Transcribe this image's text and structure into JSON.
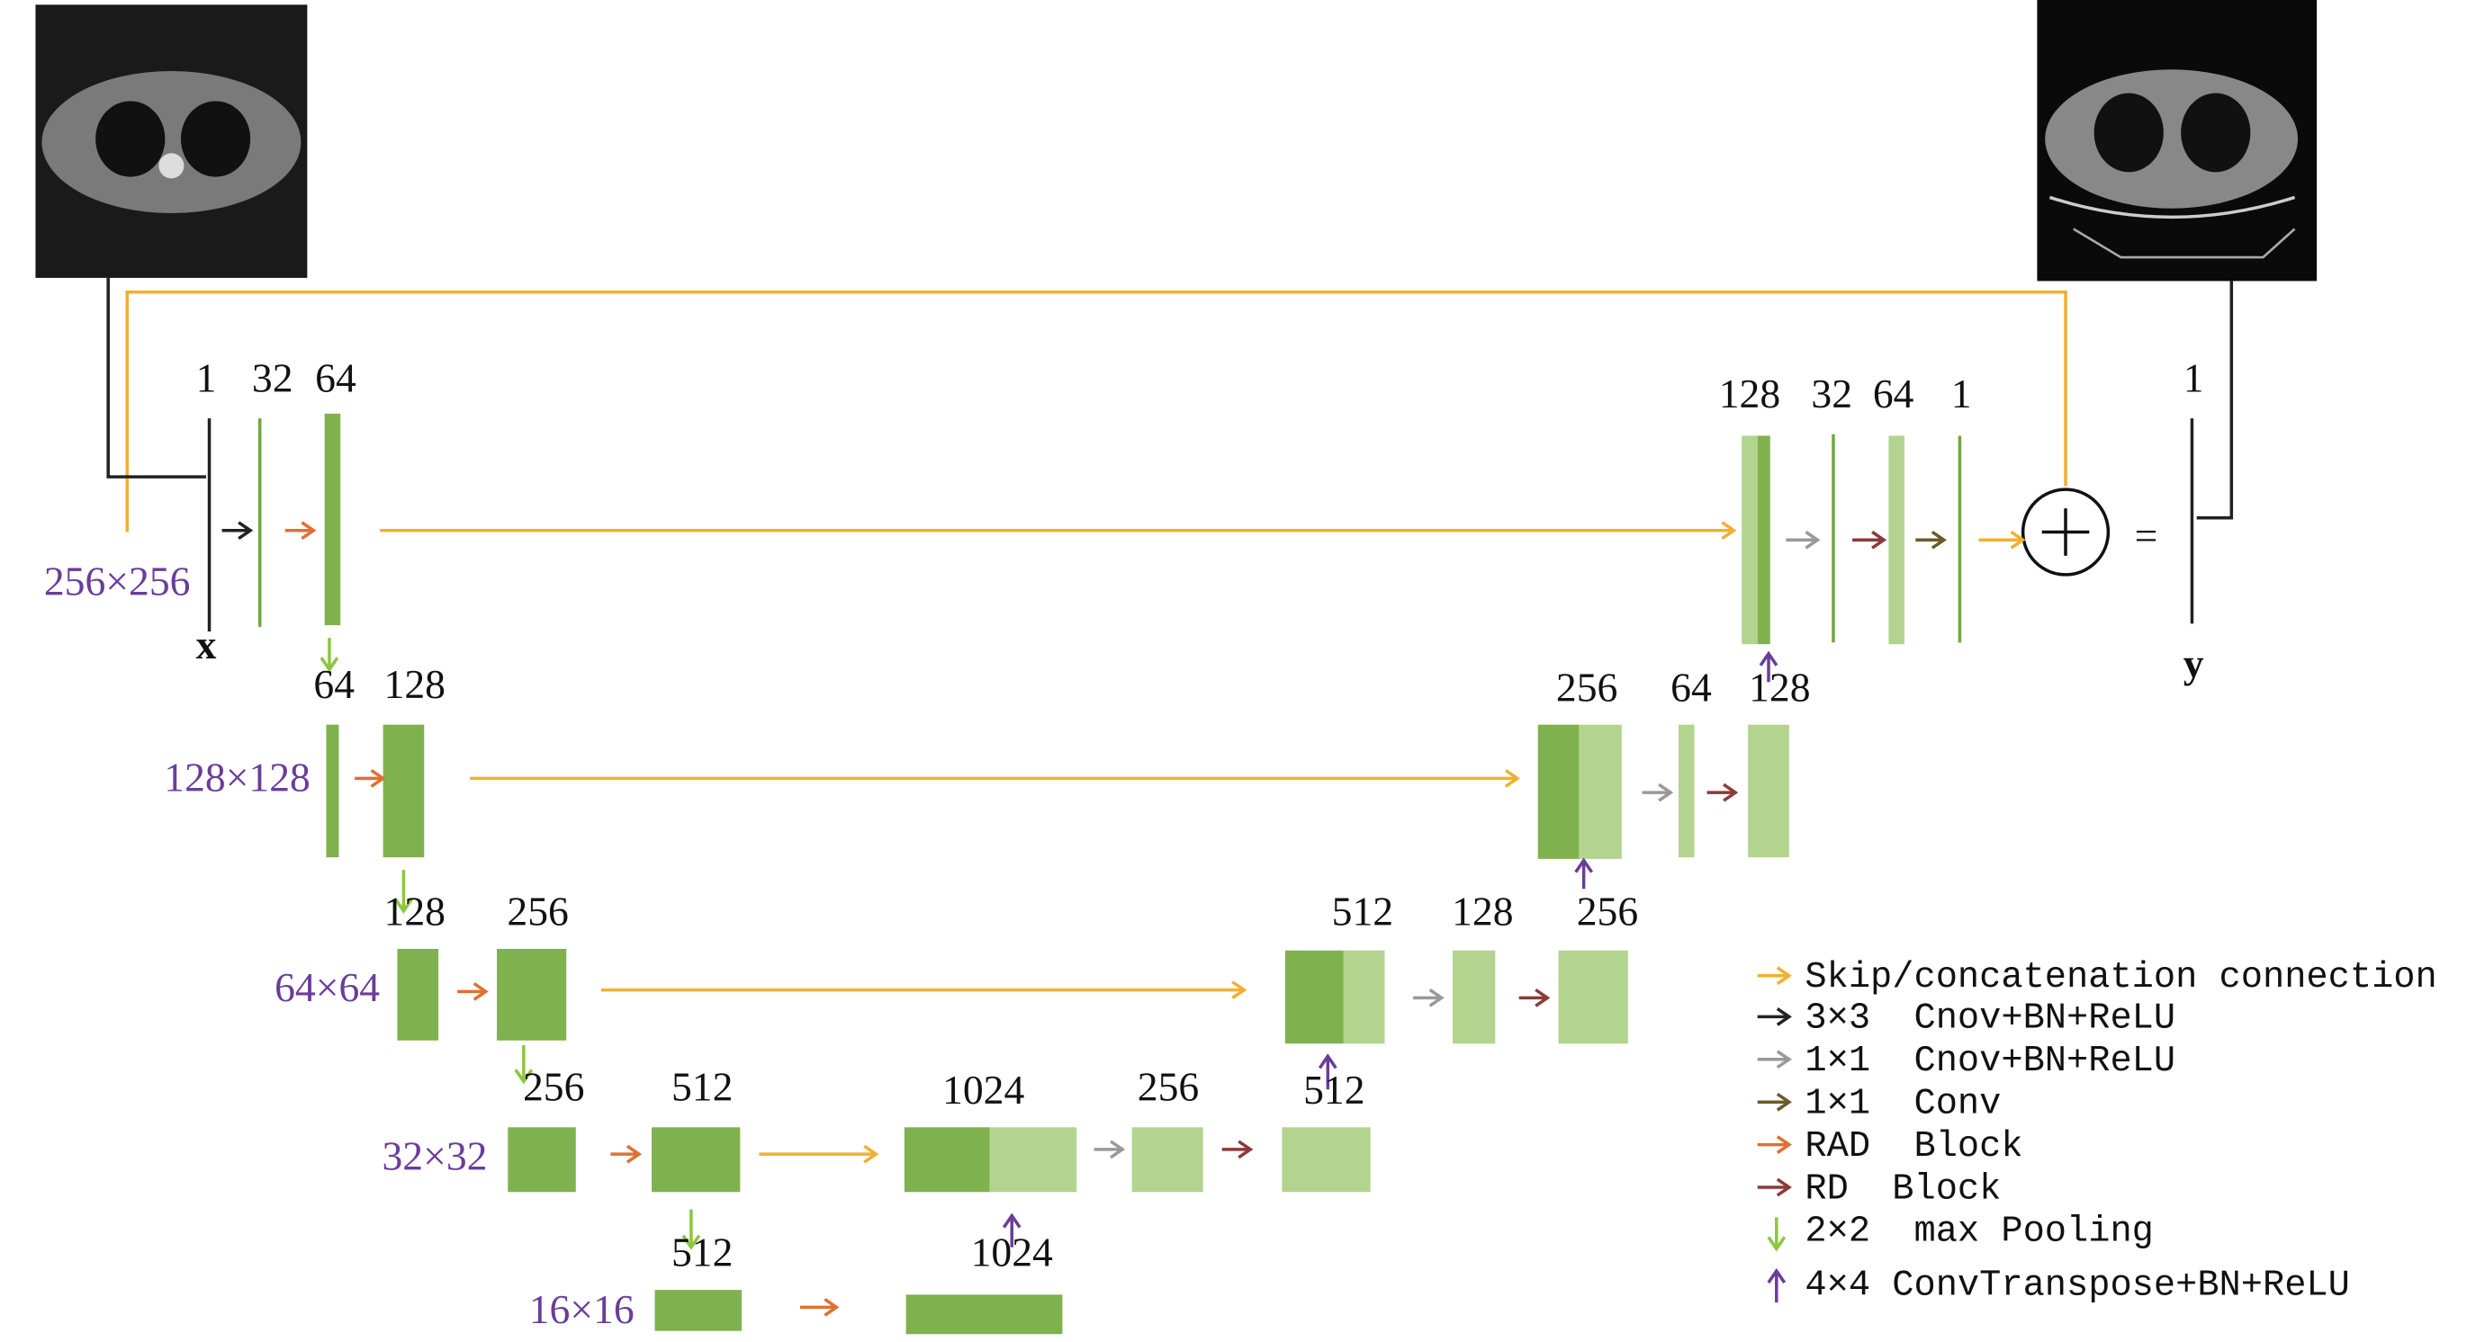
{
  "inputs": {
    "x": "x",
    "y": "y"
  },
  "equals": "=",
  "resolutions": [
    "256×256",
    "128×128",
    "64×64",
    "32×32",
    "16×16"
  ],
  "channel_labels": [
    "1",
    "32",
    "64",
    "128",
    "32",
    "64",
    "1",
    "1",
    "64",
    "128",
    "256",
    "64",
    "128",
    "128",
    "256",
    "512",
    "128",
    "256",
    "256",
    "512",
    "1024",
    "256",
    "512",
    "512",
    "1024"
  ],
  "legend": [
    "Skip/concatenation connection",
    "3×3  Cnov+BN+ReLU",
    "1×1  Cnov+BN+ReLU",
    "1×1  Conv",
    "RAD  Block",
    "RD  Block",
    "2×2  max Pooling",
    "4×4 ConvTranspose+BN+ReLU"
  ]
}
